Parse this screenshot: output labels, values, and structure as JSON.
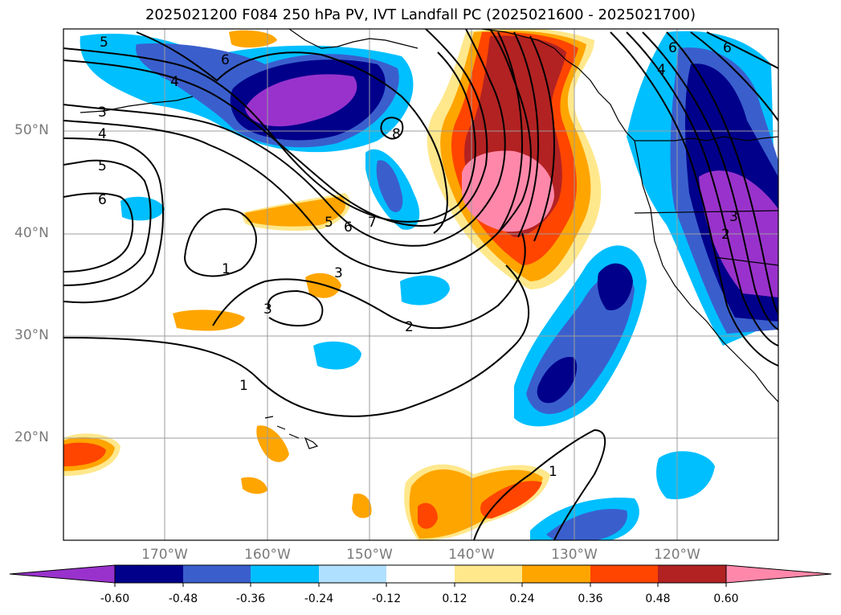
{
  "title": "2025021200 F084 250 hPa PV, IVT Landfall PC (2025021600 - 2025021700)",
  "lat_labels": [
    "50°N",
    "40°N",
    "30°N",
    "20°N"
  ],
  "lon_labels": [
    "170°W",
    "160°W",
    "150°W",
    "140°W",
    "130°W",
    "120°W"
  ],
  "colorbar": {
    "tick_labels": [
      "-0.60",
      "-0.48",
      "-0.36",
      "-0.24",
      "-0.12",
      "0.12",
      "0.24",
      "0.36",
      "0.48",
      "0.60"
    ],
    "colors": [
      "#9932cc",
      "#00008b",
      "#3a5fcd",
      "#00bfff",
      "#b0e0ff",
      "#ffffff",
      "#ffe88c",
      "#ffa500",
      "#ff4500",
      "#b22222",
      "#ff88aa"
    ]
  },
  "pv_contour_labels": [
    "5",
    "6",
    "4",
    "3",
    "4",
    "5",
    "6",
    "5",
    "6",
    "7",
    "8",
    "3",
    "1",
    "3",
    "2",
    "1",
    "1",
    "6",
    "6",
    "4",
    "3",
    "2"
  ]
}
